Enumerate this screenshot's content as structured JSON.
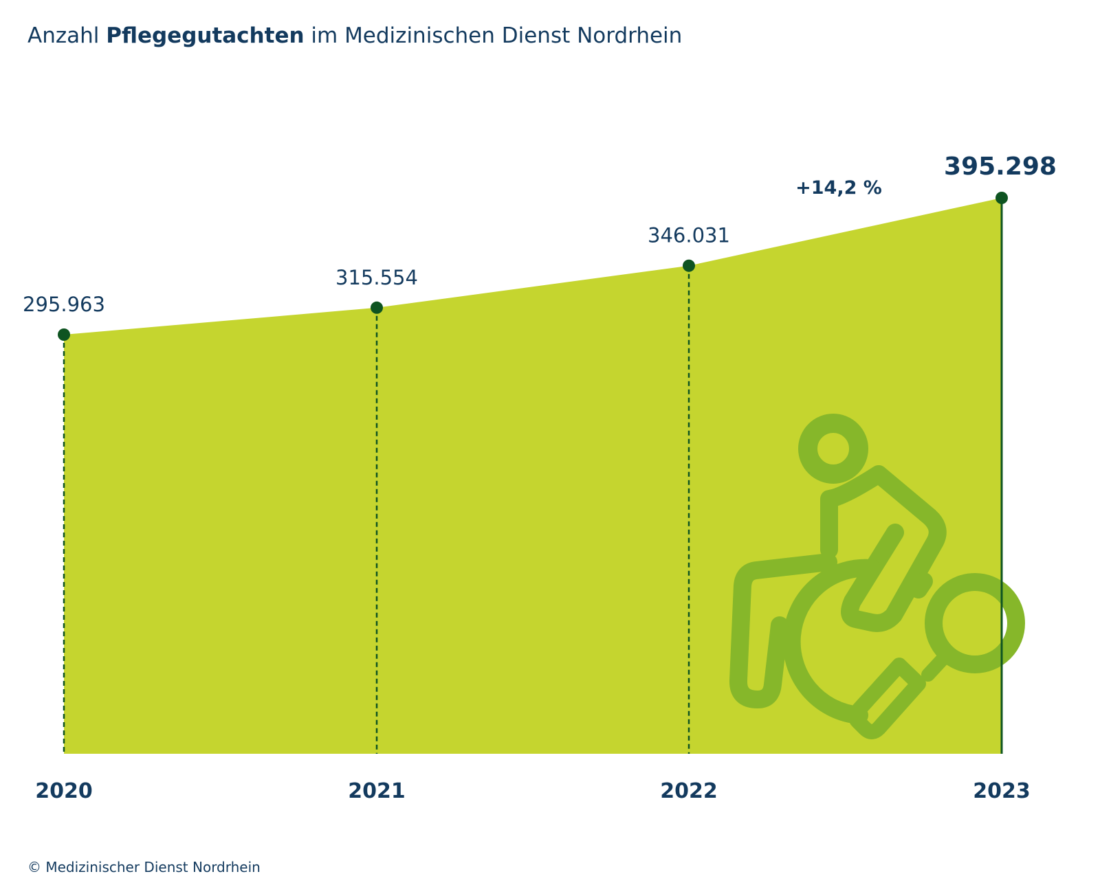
{
  "title": {
    "prefix": "Anzahl ",
    "bold": "Pflegegutachten",
    "suffix": " im Medizinischen Dienst Nordrhein"
  },
  "source": "© Medizinischer Dienst Nordrhein",
  "colors": {
    "area": "#c5d52f",
    "marker": "#0e5421",
    "text": "#133a5e",
    "icon": "#86b72a"
  },
  "icon": "wheelchair-magnifier-icon",
  "chart_data": {
    "type": "area",
    "x": [
      "2020",
      "2021",
      "2022",
      "2023"
    ],
    "values": [
      295963,
      315554,
      346031,
      395298
    ],
    "value_labels": [
      "295.963",
      "315.554",
      "346.031",
      "395.298"
    ],
    "change_label": "+14,2 %",
    "title": "Anzahl Pflegegutachten im Medizinischen Dienst Nordrhein",
    "xlabel": "",
    "ylabel": "",
    "grid": false,
    "legend": "none"
  }
}
